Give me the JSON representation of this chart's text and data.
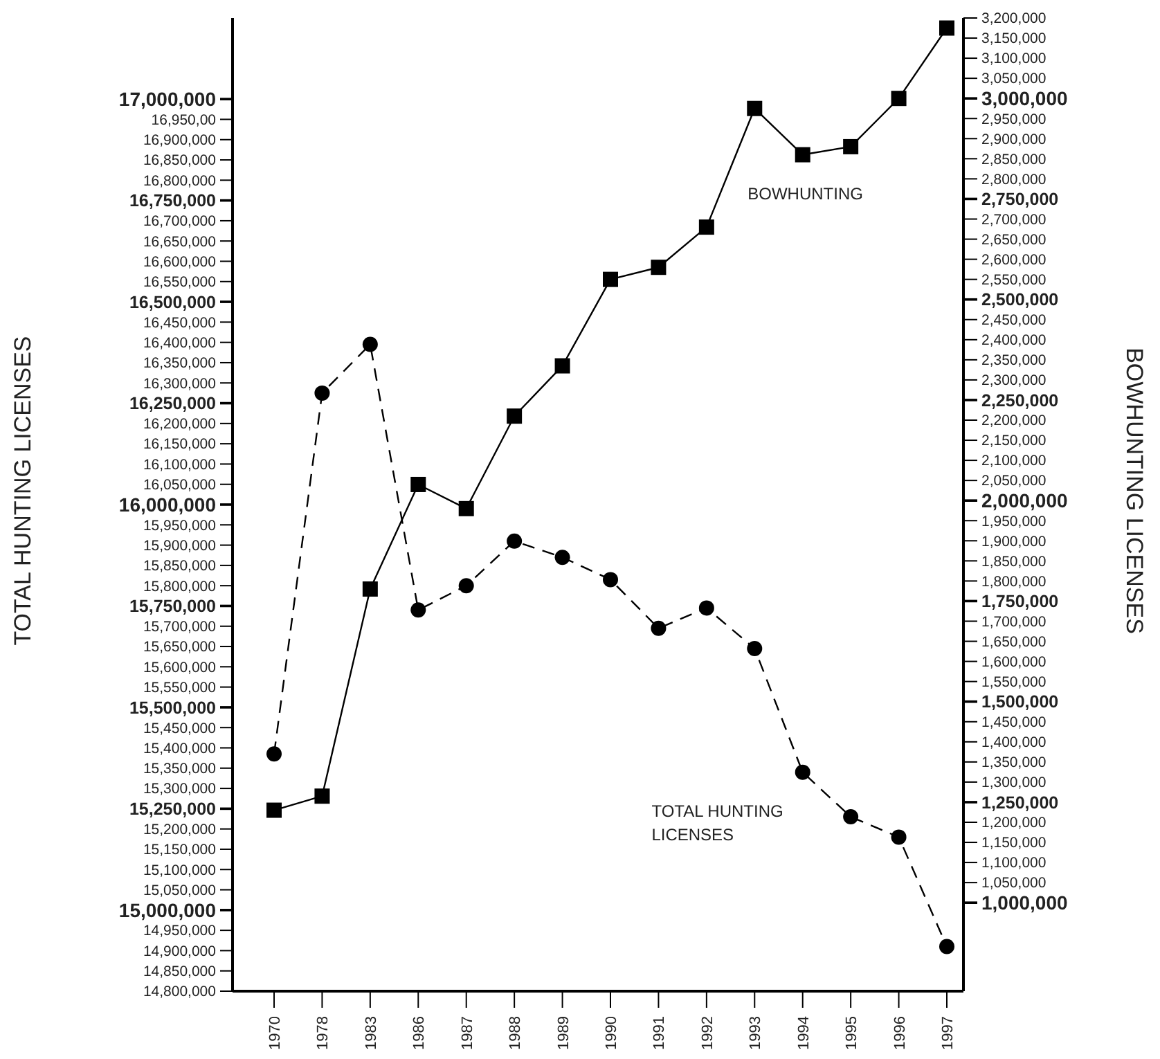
{
  "chart_data": {
    "type": "line",
    "ylabel": "TOTAL HUNTING LICENSES",
    "y2label": "BOWHUNTING LICENSES",
    "categories": [
      "1970",
      "1978",
      "1983",
      "1986",
      "1987",
      "1988",
      "1989",
      "1990",
      "1991",
      "1992",
      "1993",
      "1994",
      "1995",
      "1996",
      "1997"
    ],
    "series": [
      {
        "name": "TOTAL HUNTING LICENSES",
        "color": "#000000",
        "marker": "circle",
        "line_style": "dashed",
        "values": [
          15385000,
          16275000,
          16395000,
          15740000,
          15800000,
          15910000,
          15870000,
          15815000,
          15695000,
          15745000,
          15645000,
          15340000,
          15230000,
          15180000,
          14910000
        ]
      },
      {
        "name": "BOWHUNTING",
        "color": "#000000",
        "marker": "square",
        "line_style": "solid",
        "axis": "y2",
        "values": [
          1230000,
          1265000,
          1780000,
          2040000,
          1980000,
          2210000,
          2335000,
          2550000,
          2580000,
          2680000,
          2975000,
          2860000,
          2880000,
          3000000,
          3175000
        ]
      }
    ],
    "ylim": [
      14800000,
      17200000
    ],
    "yticks": [
      {
        "value": 14800000,
        "label": "14,800,000"
      },
      {
        "value": 14850000,
        "label": "14,850,000"
      },
      {
        "value": 14900000,
        "label": "14,900,000"
      },
      {
        "value": 14950000,
        "label": "14,950,000"
      },
      {
        "value": 15000000,
        "label": "15,000,000"
      },
      {
        "value": 15050000,
        "label": "15,050,000"
      },
      {
        "value": 15100000,
        "label": "15,100,000"
      },
      {
        "value": 15150000,
        "label": "15,150,000"
      },
      {
        "value": 15200000,
        "label": "15,200,000"
      },
      {
        "value": 15250000,
        "label": "15,250,000"
      },
      {
        "value": 15300000,
        "label": "15,300,000"
      },
      {
        "value": 15350000,
        "label": "15,350,000"
      },
      {
        "value": 15400000,
        "label": "15,400,000"
      },
      {
        "value": 15450000,
        "label": "15,450,000"
      },
      {
        "value": 15500000,
        "label": "15,500,000"
      },
      {
        "value": 15550000,
        "label": "15,550,000"
      },
      {
        "value": 15600000,
        "label": "15,600,000"
      },
      {
        "value": 15650000,
        "label": "15,650,000"
      },
      {
        "value": 15700000,
        "label": "15,700,000"
      },
      {
        "value": 15750000,
        "label": "15,750,000"
      },
      {
        "value": 15800000,
        "label": "15,800,000"
      },
      {
        "value": 15850000,
        "label": "15,850,000"
      },
      {
        "value": 15900000,
        "label": "15,900,000"
      },
      {
        "value": 15950000,
        "label": "15,950,000"
      },
      {
        "value": 16000000,
        "label": "16,000,000"
      },
      {
        "value": 16050000,
        "label": "16,050,000"
      },
      {
        "value": 16100000,
        "label": "16,100,000"
      },
      {
        "value": 16150000,
        "label": "16,150,000"
      },
      {
        "value": 16200000,
        "label": "16,200,000"
      },
      {
        "value": 16250000,
        "label": "16,250,000"
      },
      {
        "value": 16300000,
        "label": "16,300,000"
      },
      {
        "value": 16350000,
        "label": "16,350,000"
      },
      {
        "value": 16400000,
        "label": "16,400,000"
      },
      {
        "value": 16450000,
        "label": "16,450,000"
      },
      {
        "value": 16500000,
        "label": "16,500,000"
      },
      {
        "value": 16550000,
        "label": "16,550,000"
      },
      {
        "value": 16600000,
        "label": "16,600,000"
      },
      {
        "value": 16650000,
        "label": "16,650,000"
      },
      {
        "value": 16700000,
        "label": "16,700,000"
      },
      {
        "value": 16750000,
        "label": "16,750,000"
      },
      {
        "value": 16800000,
        "label": "16,800,000"
      },
      {
        "value": 16850000,
        "label": "16,850,000"
      },
      {
        "value": 16900000,
        "label": "16,900,000"
      },
      {
        "value": 16950000,
        "label": "16,950,00"
      },
      {
        "value": 17000000,
        "label": "17,000,000"
      }
    ],
    "y2lim": [
      780000,
      3200000
    ],
    "y2ticks": [
      {
        "value": 1000000,
        "label": "1,000,000"
      },
      {
        "value": 1050000,
        "label": "1,050,000"
      },
      {
        "value": 1100000,
        "label": "1,100,000"
      },
      {
        "value": 1150000,
        "label": "1,150,000"
      },
      {
        "value": 1200000,
        "label": "1,200,000"
      },
      {
        "value": 1250000,
        "label": "1,250,000"
      },
      {
        "value": 1300000,
        "label": "1,300,000"
      },
      {
        "value": 1350000,
        "label": "1,350,000"
      },
      {
        "value": 1400000,
        "label": "1,400,000"
      },
      {
        "value": 1450000,
        "label": "1,450,000"
      },
      {
        "value": 1500000,
        "label": "1,500,000"
      },
      {
        "value": 1550000,
        "label": "1,550,000"
      },
      {
        "value": 1600000,
        "label": "1,600,000"
      },
      {
        "value": 1650000,
        "label": "1,650,000"
      },
      {
        "value": 1700000,
        "label": "1,700,000"
      },
      {
        "value": 1750000,
        "label": "1,750,000"
      },
      {
        "value": 1800000,
        "label": "1,800,000"
      },
      {
        "value": 1850000,
        "label": "1,850,000"
      },
      {
        "value": 1900000,
        "label": "1,900,000"
      },
      {
        "value": 1950000,
        "label": "1,950,000"
      },
      {
        "value": 2000000,
        "label": "2,000,000"
      },
      {
        "value": 2050000,
        "label": "2,050,000"
      },
      {
        "value": 2100000,
        "label": "2,100,000"
      },
      {
        "value": 2150000,
        "label": "2,150,000"
      },
      {
        "value": 2200000,
        "label": "2,200,000"
      },
      {
        "value": 2250000,
        "label": "2,250,000"
      },
      {
        "value": 2300000,
        "label": "2,300,000"
      },
      {
        "value": 2350000,
        "label": "2,350,000"
      },
      {
        "value": 2400000,
        "label": "2,400,000"
      },
      {
        "value": 2450000,
        "label": "2,450,000"
      },
      {
        "value": 2500000,
        "label": "2,500,000"
      },
      {
        "value": 2550000,
        "label": "2,550,000"
      },
      {
        "value": 2600000,
        "label": "2,600,000"
      },
      {
        "value": 2650000,
        "label": "2,650,000"
      },
      {
        "value": 2700000,
        "label": "2,700,000"
      },
      {
        "value": 2750000,
        "label": "2,750,000"
      },
      {
        "value": 2800000,
        "label": "2,800,000"
      },
      {
        "value": 2850000,
        "label": "2,850,000"
      },
      {
        "value": 2900000,
        "label": "2,900,000"
      },
      {
        "value": 2950000,
        "label": "2,950,000"
      },
      {
        "value": 3000000,
        "label": "3,000,000"
      },
      {
        "value": 3050000,
        "label": "3,050,000"
      },
      {
        "value": 3100000,
        "label": "3,100,000"
      },
      {
        "value": 3150000,
        "label": "3,150,000"
      },
      {
        "value": 3200000,
        "label": "3,200,000"
      }
    ],
    "grid": false,
    "legend": false
  }
}
